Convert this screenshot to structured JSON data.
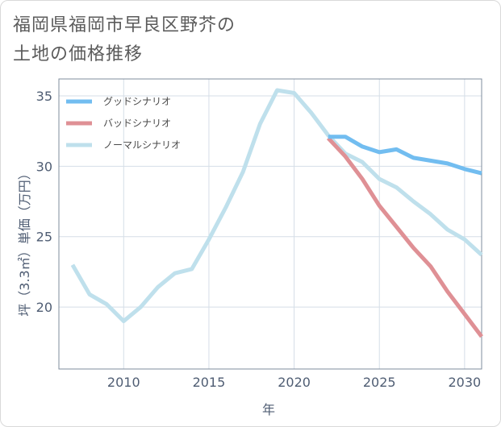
{
  "title_lines": [
    "福岡県福岡市早良区野芥の",
    "土地の価格推移"
  ],
  "chart_data": {
    "type": "line",
    "title": "福岡県福岡市早良区野芥の土地の価格推移",
    "xlabel": "年",
    "ylabel": "坪（3.3㎡）単価（万円）",
    "xlim": [
      2006.2,
      2031
    ],
    "ylim": [
      15.6,
      36.2
    ],
    "xticks": [
      2010,
      2015,
      2020,
      2025,
      2030
    ],
    "yticks": [
      20,
      25,
      30,
      35
    ],
    "grid": true,
    "legend_position": "top-left",
    "series": [
      {
        "name": "グッドシナリオ",
        "color": "#72bdf0",
        "x": [
          2022,
          2023,
          2024,
          2025,
          2026,
          2027,
          2028,
          2029,
          2030,
          2031
        ],
        "y": [
          32.1,
          32.1,
          31.4,
          31.0,
          31.2,
          30.6,
          30.4,
          30.2,
          29.8,
          29.5
        ]
      },
      {
        "name": "バッドシナリオ",
        "color": "#df9095",
        "x": [
          2022,
          2023,
          2024,
          2025,
          2026,
          2027,
          2028,
          2029,
          2030,
          2031
        ],
        "y": [
          32.0,
          30.7,
          29.1,
          27.2,
          25.7,
          24.2,
          22.9,
          21.1,
          19.5,
          17.9
        ]
      },
      {
        "name": "ノーマルシナリオ",
        "color": "#bfe0ec",
        "x": [
          2007,
          2008,
          2009,
          2010,
          2011,
          2012,
          2013,
          2014,
          2015,
          2016,
          2017,
          2018,
          2019,
          2020,
          2021,
          2022,
          2023,
          2024,
          2025,
          2026,
          2027,
          2028,
          2029,
          2030,
          2031
        ],
        "y": [
          23.0,
          20.9,
          20.2,
          19.0,
          20.0,
          21.4,
          22.4,
          22.7,
          24.8,
          27.1,
          29.6,
          33.0,
          35.4,
          35.2,
          33.8,
          32.2,
          30.9,
          30.3,
          29.1,
          28.5,
          27.5,
          26.6,
          25.5,
          24.8,
          23.7
        ]
      }
    ]
  }
}
